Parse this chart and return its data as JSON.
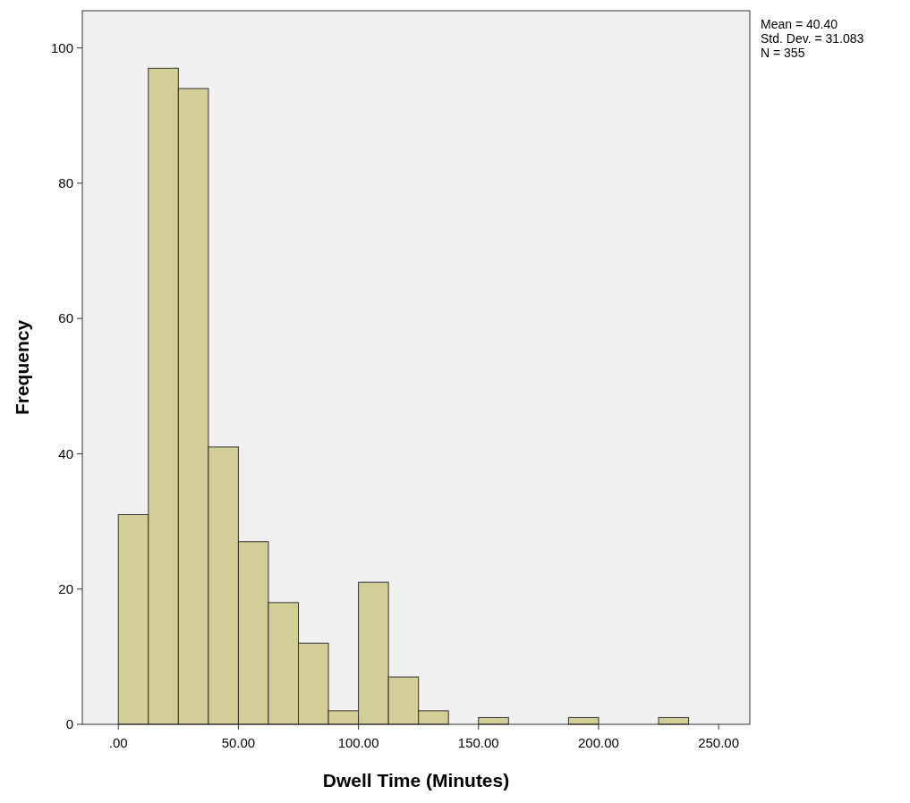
{
  "chart_data": {
    "type": "histogram",
    "xlabel": "Dwell Time (Minutes)",
    "ylabel": "Frequency",
    "bins": [
      0,
      12.5,
      25,
      37.5,
      50,
      62.5,
      75,
      87.5,
      100,
      112.5,
      125,
      137.5,
      150,
      162.5,
      175,
      187.5,
      200,
      212.5,
      225,
      237.5
    ],
    "values": [
      31,
      97,
      94,
      41,
      27,
      18,
      12,
      2,
      21,
      7,
      2,
      0,
      1,
      0,
      0,
      1,
      0,
      0,
      1
    ],
    "color": "#d3ce97",
    "xlim": [
      -15,
      263
    ],
    "xticks": [
      {
        "value": 0,
        "label": ".00"
      },
      {
        "value": 50,
        "label": "50.00"
      },
      {
        "value": 100,
        "label": "100.00"
      },
      {
        "value": 150,
        "label": "150.00"
      },
      {
        "value": 200,
        "label": "200.00"
      },
      {
        "value": 250,
        "label": "250.00"
      }
    ],
    "ylim": [
      0,
      105.5
    ],
    "yticks": [
      0,
      20,
      40,
      60,
      80,
      100
    ],
    "grid": false,
    "annotations": [
      "Mean = 40.40",
      "Std. Dev. = 31.083",
      "N = 355"
    ]
  }
}
